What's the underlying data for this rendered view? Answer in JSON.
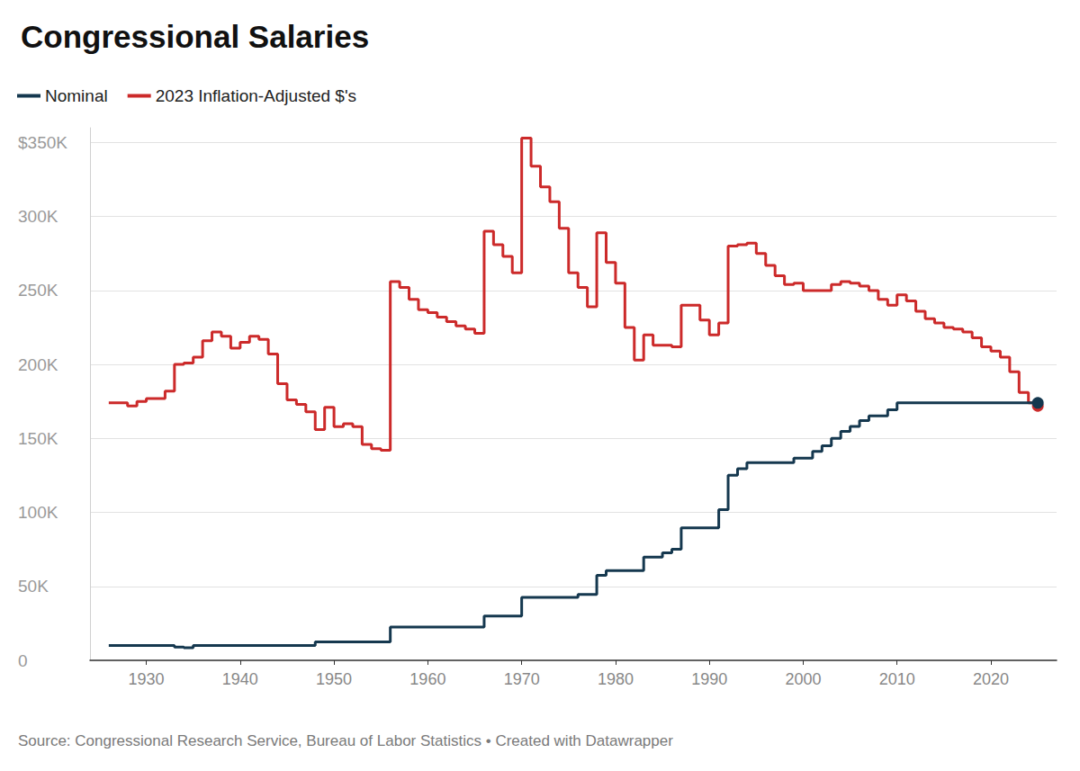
{
  "chart_data": {
    "type": "line",
    "title": "Congressional Salaries",
    "caption": "Source: Congressional Research Service, Bureau of Labor Statistics • Created with Datawrapper",
    "line_style": "step",
    "legend": "top-left",
    "grid": true,
    "xlim": [
      1924,
      2027
    ],
    "xticks": [
      1930,
      1940,
      1950,
      1960,
      1970,
      1980,
      1990,
      2000,
      2010,
      2020
    ],
    "ylim": [
      0,
      360000
    ],
    "yticks": [
      0,
      {
        "value": 50000,
        "label": "50K"
      },
      {
        "value": 100000,
        "label": "100K"
      },
      {
        "value": 150000,
        "label": "150K"
      },
      {
        "value": 200000,
        "label": "200K"
      },
      {
        "value": 250000,
        "label": "250K"
      },
      {
        "value": 300000,
        "label": "300K"
      },
      {
        "value": 350000,
        "label": "$350K"
      }
    ],
    "x": [
      1926,
      1927,
      1928,
      1929,
      1930,
      1931,
      1932,
      1933,
      1934,
      1935,
      1936,
      1937,
      1938,
      1939,
      1940,
      1941,
      1942,
      1943,
      1944,
      1945,
      1946,
      1947,
      1948,
      1949,
      1950,
      1951,
      1952,
      1953,
      1954,
      1955,
      1956,
      1957,
      1958,
      1959,
      1960,
      1961,
      1962,
      1963,
      1964,
      1965,
      1966,
      1967,
      1968,
      1969,
      1970,
      1971,
      1972,
      1973,
      1974,
      1975,
      1976,
      1977,
      1978,
      1979,
      1980,
      1981,
      1982,
      1983,
      1984,
      1985,
      1986,
      1987,
      1988,
      1989,
      1990,
      1991,
      1992,
      1993,
      1994,
      1995,
      1996,
      1997,
      1998,
      1999,
      2000,
      2001,
      2002,
      2003,
      2004,
      2005,
      2006,
      2007,
      2008,
      2009,
      2010,
      2011,
      2012,
      2013,
      2014,
      2015,
      2016,
      2017,
      2018,
      2019,
      2020,
      2021,
      2022,
      2023,
      2024,
      2025
    ],
    "series": [
      {
        "name": "Nominal",
        "color": "#15384f",
        "values": [
          10000,
          10000,
          10000,
          10000,
          10000,
          10000,
          10000,
          9000,
          8500,
          10000,
          10000,
          10000,
          10000,
          10000,
          10000,
          10000,
          10000,
          10000,
          10000,
          10000,
          10000,
          10000,
          12500,
          12500,
          12500,
          12500,
          12500,
          12500,
          12500,
          12500,
          22500,
          22500,
          22500,
          22500,
          22500,
          22500,
          22500,
          22500,
          22500,
          22500,
          30000,
          30000,
          30000,
          30000,
          42500,
          42500,
          42500,
          42500,
          42500,
          42500,
          44600,
          44600,
          57500,
          60700,
          60700,
          60700,
          60700,
          69800,
          69800,
          72600,
          75100,
          89500,
          89500,
          89500,
          89500,
          101900,
          125100,
          129500,
          133600,
          133600,
          133600,
          133600,
          133600,
          136700,
          136700,
          141300,
          145100,
          150000,
          154700,
          158100,
          162100,
          165200,
          165200,
          169300,
          174000,
          174000,
          174000,
          174000,
          174000,
          174000,
          174000,
          174000,
          174000,
          174000,
          174000,
          174000,
          174000,
          174000,
          174000,
          174000
        ]
      },
      {
        "name": "2023 Inflation-Adjusted $'s",
        "color": "#cc2a2a",
        "values": [
          174000,
          174000,
          172000,
          175000,
          177000,
          177000,
          182000,
          200000,
          201000,
          205000,
          216000,
          222000,
          219000,
          211000,
          215000,
          219000,
          217000,
          207000,
          187000,
          176000,
          173000,
          168000,
          156000,
          171000,
          158000,
          160000,
          158000,
          146000,
          143000,
          142000,
          256000,
          252000,
          244000,
          237000,
          235000,
          232000,
          229000,
          226000,
          224000,
          221000,
          290000,
          281000,
          273000,
          262000,
          353000,
          334000,
          320000,
          310000,
          292000,
          262000,
          252000,
          239000,
          289000,
          269000,
          255000,
          225000,
          203000,
          220000,
          213000,
          213000,
          212000,
          240000,
          240000,
          230000,
          220000,
          228000,
          280000,
          281000,
          282000,
          275000,
          267000,
          260000,
          254000,
          255000,
          250000,
          250000,
          250000,
          254000,
          256000,
          255000,
          253000,
          250000,
          244000,
          240000,
          247000,
          243000,
          236000,
          231000,
          228000,
          225000,
          224000,
          222000,
          218000,
          212000,
          209000,
          205000,
          195000,
          181000,
          174000,
          172000
        ]
      }
    ]
  }
}
